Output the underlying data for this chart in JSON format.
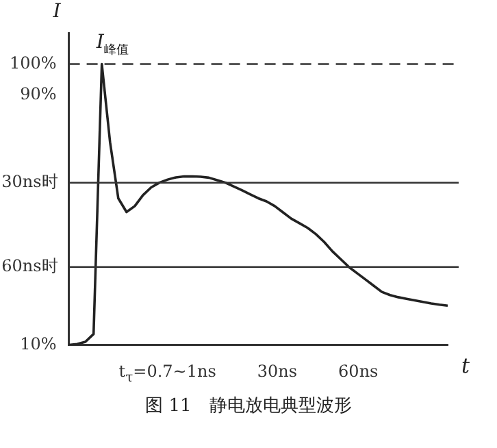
{
  "chart_data": {
    "type": "line",
    "title": "图 11　静电放电典型波形",
    "xlabel": "t",
    "ylabel": "I",
    "categories": [
      null,
      null,
      null,
      null,
      null,
      null,
      null,
      null,
      null,
      null,
      null,
      null,
      null,
      null,
      null,
      null,
      null,
      null,
      null,
      null,
      null,
      null,
      null,
      null,
      null,
      null,
      null,
      null,
      null,
      null,
      null,
      null,
      null,
      null,
      null,
      null,
      null,
      null,
      null,
      null,
      null,
      null,
      null,
      null,
      null,
      null,
      null
    ],
    "series": [
      {
        "color": "#222222",
        "values": [
          10,
          10.3,
          11,
          13.5,
          100,
          75,
          57,
          52.6,
          54.5,
          58,
          60.5,
          62,
          63,
          63.7,
          64,
          64,
          63.9,
          63.6,
          62.8,
          62,
          60.8,
          59.6,
          58.3,
          57,
          56,
          54.5,
          52.5,
          50.5,
          49,
          47.5,
          45.5,
          43,
          40,
          37.5,
          35,
          33,
          31,
          29,
          27,
          26,
          25.3,
          24.8,
          24.3,
          23.8,
          23.3,
          22.9,
          22.6
        ]
      }
    ],
    "ylim": [
      10,
      110
    ],
    "yticks": [
      {
        "value": 10,
        "label": "10%"
      },
      {
        "value": 90,
        "label": "90%"
      },
      {
        "value": 100,
        "label": "100%"
      }
    ],
    "tick_labels": "y",
    "grid": false,
    "marker": "none",
    "line_style": "solid",
    "legend": false,
    "ref_lines": [
      {
        "axis": "y",
        "value": 100,
        "line_style": "dashed",
        "color": "#333333"
      },
      {
        "axis": "y",
        "value": 62,
        "label": "30ns时",
        "color": "#333333"
      },
      {
        "axis": "y",
        "value": 35,
        "label": "60ns时",
        "color": "#333333"
      }
    ],
    "annotations": [
      "I$_{峰值}$",
      "t$_{τ}$=0.7~1ns",
      "30ns",
      "60ns"
    ]
  }
}
